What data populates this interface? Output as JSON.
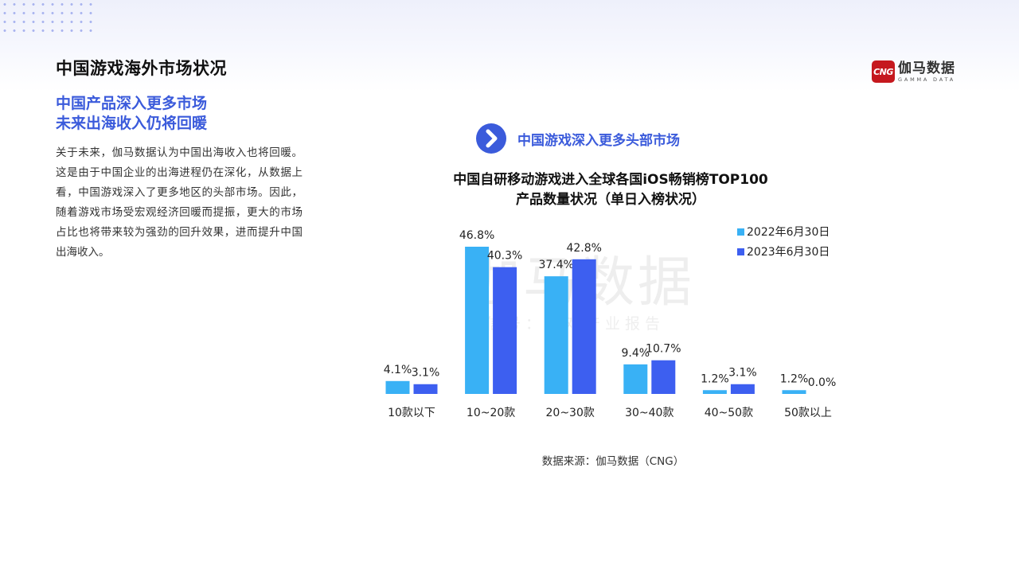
{
  "page": {
    "title": "中国游戏海外市场状况",
    "headline_line1": "中国产品深入更多市场",
    "headline_line2": "未来出海收入仍将回暖",
    "body": "关于未来，伽马数据认为中国出海收入也将回暖。这是由于中国企业的出海进程仍在深化，从数据上看，中国游戏深入了更多地区的头部市场。因此，随着游戏市场受宏观经济回暖而提振，更大的市场占比也将带来较为强劲的回升效果，进而提升中国出海收入。",
    "section_label": "中国游戏深入更多头部市场",
    "source": "数据来源：伽马数据（CNG）"
  },
  "logo": {
    "mark": "CNG",
    "cn": "伽马数据",
    "en": "GAMMA DATA",
    "color": "#c5181e"
  },
  "watermark": {
    "main": "伽马数据",
    "sub": "微信号：游戏产业报告"
  },
  "icons": {
    "section": "chevron-right-icon"
  },
  "colors": {
    "accent": "#3b5bdb",
    "series_2022": "#39b1f5",
    "series_2023": "#3d5ff0"
  },
  "chart_data": {
    "type": "bar",
    "title_line1": "中国自研移动游戏进入全球各国iOS畅销榜TOP100",
    "title_line2": "产品数量状况（单日入榜状况）",
    "categories": [
      "10款以下",
      "10~20款",
      "20~30款",
      "30~40款",
      "40~50款",
      "50款以上"
    ],
    "series": [
      {
        "name": "2022年6月30日",
        "values": [
          4.1,
          46.8,
          37.4,
          9.4,
          1.2,
          1.2
        ],
        "labels": [
          "4.1%",
          "46.8%",
          "37.4%",
          "9.4%",
          "1.2%",
          "1.2%"
        ],
        "color": "#39b1f5"
      },
      {
        "name": "2023年6月30日",
        "values": [
          3.1,
          40.3,
          42.8,
          10.7,
          3.1,
          0.0
        ],
        "labels": [
          "3.1%",
          "40.3%",
          "42.8%",
          "10.7%",
          "3.1%",
          "0.0%"
        ],
        "color": "#3d5ff0"
      }
    ],
    "ylim": [
      0,
      50
    ],
    "legend": "top-right",
    "grid": false
  }
}
